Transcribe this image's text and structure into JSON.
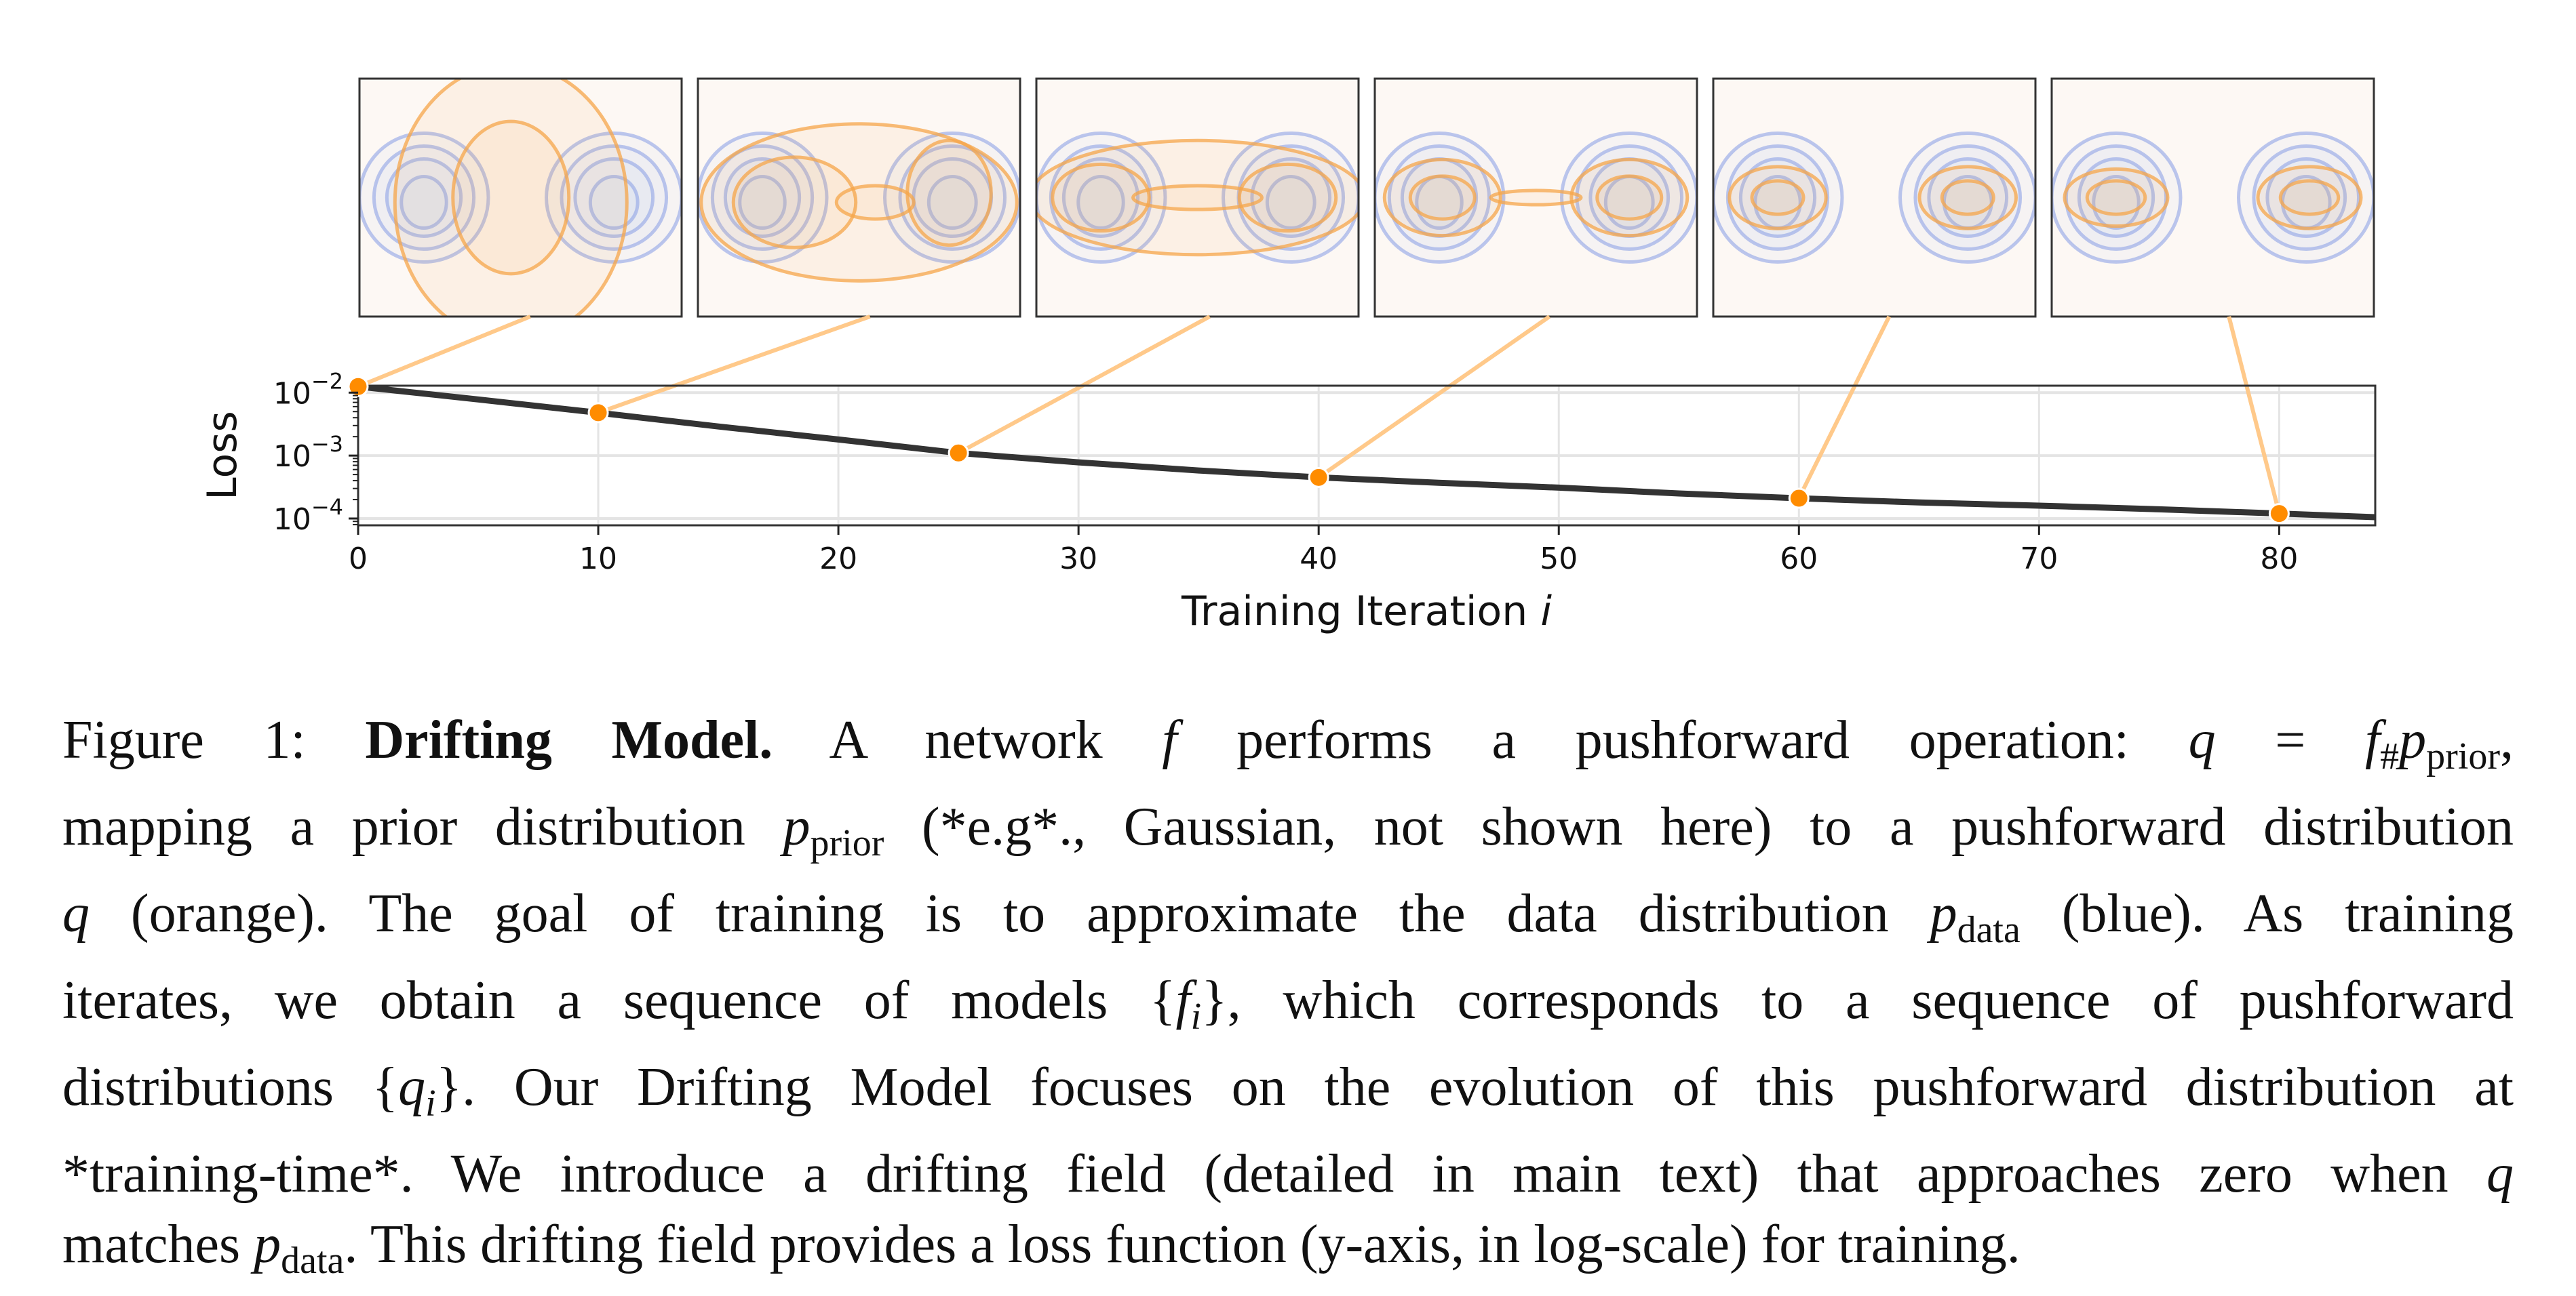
{
  "chart_data": {
    "type": "line",
    "xlabel": "Training Iteration",
    "xlabel_var": "i",
    "ylabel": "Loss",
    "yscale": "log",
    "xlim": [
      0,
      84
    ],
    "ylim": [
      7.8e-05,
      0.0129
    ],
    "grid": true,
    "x_ticks": [
      0,
      10,
      20,
      30,
      40,
      50,
      60,
      70,
      80
    ],
    "y_ticks": [
      {
        "base": "10",
        "exp": "−2",
        "value": 0.01
      },
      {
        "base": "10",
        "exp": "−3",
        "value": 0.001
      },
      {
        "base": "10",
        "exp": "−4",
        "value": 0.0001
      }
    ],
    "curve": {
      "color": "#333333",
      "x": [
        0,
        5,
        10,
        15,
        20,
        25,
        30,
        35,
        40,
        45,
        50,
        55,
        60,
        65,
        70,
        75,
        80,
        84
      ],
      "y": [
        0.0125,
        0.0078,
        0.0048,
        0.0029,
        0.0018,
        0.0011,
        0.00078,
        0.00058,
        0.00045,
        0.00037,
        0.00031,
        0.00025,
        0.00021,
        0.00018,
        0.00016,
        0.00014,
        0.00012,
        0.000105
      ]
    },
    "markers": {
      "color": "#ff8c00",
      "x": [
        0,
        10,
        25,
        40,
        60,
        80
      ],
      "y": [
        0.0125,
        0.0048,
        0.0011,
        0.00045,
        0.00021,
        0.00012
      ]
    },
    "connector_color": "#ffc98a",
    "snapshots": {
      "iterations": [
        0,
        10,
        25,
        40,
        60,
        80
      ],
      "data_color": "#8fa3e6",
      "model_color": "#f5a54a",
      "background": "#fdf8f4"
    }
  },
  "caption": {
    "lines": [
      [
        {
          "t": "Figure 1: "
        },
        {
          "t": "Drifting Model.",
          "c": "b"
        },
        {
          "t": " A network "
        },
        {
          "t": "f",
          "c": "i"
        },
        {
          "t": " performs a pushforward operation: "
        },
        {
          "t": "q",
          "c": "i"
        },
        {
          "t": " = "
        },
        {
          "t": "f",
          "c": "i"
        },
        {
          "t": "#",
          "c": "sub"
        },
        {
          "t": "p",
          "c": "i"
        },
        {
          "t": "prior",
          "c": "sub"
        },
        {
          "t": ","
        }
      ],
      [
        {
          "t": "mapping a prior distribution "
        },
        {
          "t": "p",
          "c": "i"
        },
        {
          "t": "prior",
          "c": "sub"
        },
        {
          "t": " (*e.g*., Gaussian, not shown here) to a pushforward distribution"
        }
      ],
      [
        {
          "t": "q",
          "c": "i"
        },
        {
          "t": " (orange). The goal of training is to approximate the data distribution "
        },
        {
          "t": "p",
          "c": "i"
        },
        {
          "t": "data",
          "c": "sub"
        },
        {
          "t": " (blue). As training"
        }
      ],
      [
        {
          "t": "iterates, we obtain a sequence of models {"
        },
        {
          "t": "f",
          "c": "i"
        },
        {
          "t": "i",
          "c": "sub i"
        },
        {
          "t": "}, which corresponds to a sequence of pushforward"
        }
      ],
      [
        {
          "t": "distributions {"
        },
        {
          "t": "q",
          "c": "i"
        },
        {
          "t": "i",
          "c": "sub i"
        },
        {
          "t": "}. Our Drifting Model focuses on the evolution of this pushforward distribution at"
        }
      ],
      [
        {
          "t": "*training-time*. We introduce a drifting field (detailed in main text) that approaches zero when "
        },
        {
          "t": "q",
          "c": "i"
        }
      ],
      [
        {
          "t": "matches "
        },
        {
          "t": "p",
          "c": "i"
        },
        {
          "t": "data",
          "c": "sub"
        },
        {
          "t": ". This drifting field provides a loss function (y-axis, in log-scale) for training."
        }
      ]
    ]
  }
}
